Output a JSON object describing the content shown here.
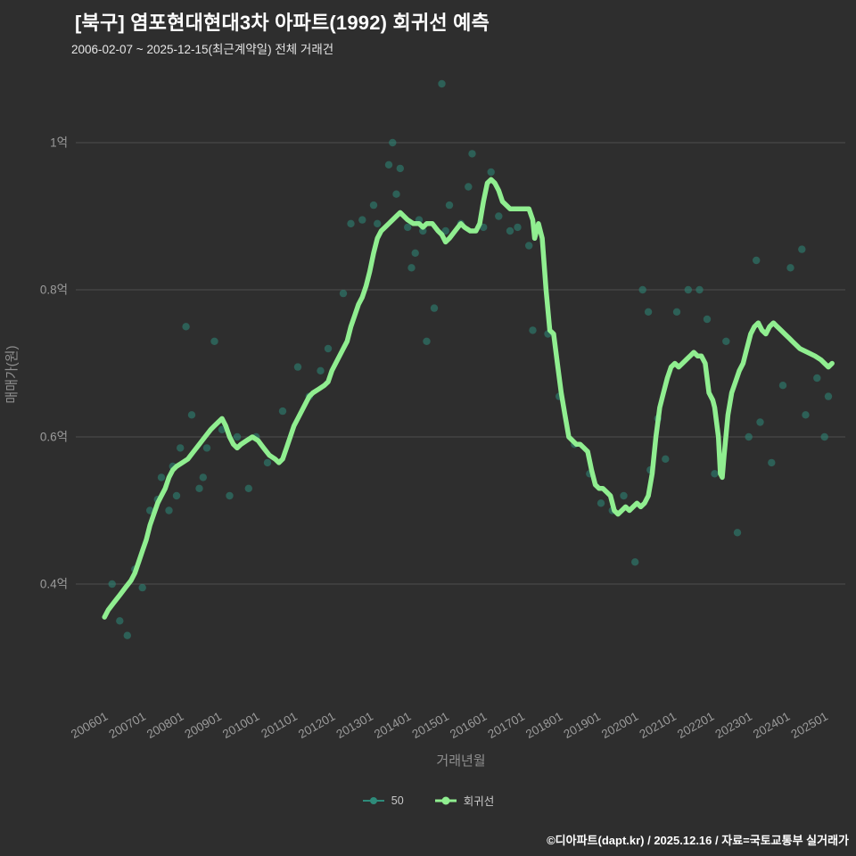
{
  "header": {
    "title": "[북구] 염포현대현대3차 아파트(1992) 회귀선 예측",
    "subtitle": "2006-02-07 ~ 2025-12-15(최근계약일) 전체 거래건"
  },
  "footer": {
    "credit": "©디아파트(dapt.kr) / 2025.12.16 / 자료=국토교통부 실거래가"
  },
  "colors": {
    "background": "#2e2e2e",
    "grid": "#4d4d4d",
    "tick_text": "#9b9b9b",
    "axis_title": "#8f8f8f",
    "scatter": "#2e8b7a",
    "line": "#90ee90",
    "title_text": "#ffffff"
  },
  "legend": {
    "items": [
      {
        "label": "50",
        "type": "scatter"
      },
      {
        "label": "회귀선",
        "type": "line"
      }
    ]
  },
  "chart_data": {
    "type": "scatter",
    "title": "[북구] 염포현대현대3차 아파트(1992) 회귀선 예측",
    "subtitle": "2006-02-07 ~ 2025-12-15(최근계약일) 전체 거래건",
    "xlabel": "거래년월",
    "ylabel": "매매가(원)",
    "x_unit": "year-month",
    "y_unit": "억원",
    "xlim": [
      2005.7,
      2026.1
    ],
    "ylim": [
      0.3,
      1.12
    ],
    "grid": "horizontal-only",
    "legend_position": "bottom-center",
    "y_ticks": [
      {
        "label": "0.4억",
        "value": 0.4
      },
      {
        "label": "0.6억",
        "value": 0.6
      },
      {
        "label": "0.8억",
        "value": 0.8
      },
      {
        "label": "1억",
        "value": 1.0
      }
    ],
    "x_ticks": [
      {
        "label": "200601",
        "value": 2006
      },
      {
        "label": "200701",
        "value": 2007
      },
      {
        "label": "200801",
        "value": 2008
      },
      {
        "label": "200901",
        "value": 2009
      },
      {
        "label": "201001",
        "value": 2010
      },
      {
        "label": "201101",
        "value": 2011
      },
      {
        "label": "201201",
        "value": 2012
      },
      {
        "label": "201301",
        "value": 2013
      },
      {
        "label": "201401",
        "value": 2014
      },
      {
        "label": "201501",
        "value": 2015
      },
      {
        "label": "201601",
        "value": 2016
      },
      {
        "label": "201701",
        "value": 2017
      },
      {
        "label": "201801",
        "value": 2018
      },
      {
        "label": "201901",
        "value": 2019
      },
      {
        "label": "202001",
        "value": 2020
      },
      {
        "label": "202101",
        "value": 2021
      },
      {
        "label": "202201",
        "value": 2022
      },
      {
        "label": "202301",
        "value": 2023
      },
      {
        "label": "202401",
        "value": 2024
      },
      {
        "label": "202501",
        "value": 2025
      }
    ],
    "series": [
      {
        "name": "50",
        "type": "scatter",
        "points": [
          [
            2006.3,
            0.4
          ],
          [
            2006.5,
            0.35
          ],
          [
            2006.7,
            0.33
          ],
          [
            2006.9,
            0.42
          ],
          [
            2007.1,
            0.395
          ],
          [
            2007.3,
            0.5
          ],
          [
            2007.5,
            0.515
          ],
          [
            2007.6,
            0.545
          ],
          [
            2007.8,
            0.5
          ],
          [
            2007.9,
            0.56
          ],
          [
            2008.0,
            0.52
          ],
          [
            2008.1,
            0.585
          ],
          [
            2008.25,
            0.75
          ],
          [
            2008.4,
            0.63
          ],
          [
            2008.6,
            0.53
          ],
          [
            2008.7,
            0.545
          ],
          [
            2008.8,
            0.585
          ],
          [
            2009.0,
            0.73
          ],
          [
            2009.2,
            0.61
          ],
          [
            2009.4,
            0.52
          ],
          [
            2009.6,
            0.6
          ],
          [
            2009.9,
            0.53
          ],
          [
            2010.1,
            0.6
          ],
          [
            2010.4,
            0.565
          ],
          [
            2010.8,
            0.635
          ],
          [
            2011.2,
            0.695
          ],
          [
            2011.5,
            0.655
          ],
          [
            2011.8,
            0.69
          ],
          [
            2012.0,
            0.72
          ],
          [
            2012.4,
            0.795
          ],
          [
            2012.6,
            0.89
          ],
          [
            2012.9,
            0.895
          ],
          [
            2013.2,
            0.915
          ],
          [
            2013.3,
            0.89
          ],
          [
            2013.6,
            0.97
          ],
          [
            2013.7,
            1.0
          ],
          [
            2013.8,
            0.93
          ],
          [
            2013.9,
            0.965
          ],
          [
            2014.1,
            0.885
          ],
          [
            2014.2,
            0.83
          ],
          [
            2014.3,
            0.85
          ],
          [
            2014.4,
            0.895
          ],
          [
            2014.5,
            0.88
          ],
          [
            2014.6,
            0.73
          ],
          [
            2014.8,
            0.775
          ],
          [
            2015.0,
            1.08
          ],
          [
            2015.1,
            0.88
          ],
          [
            2015.2,
            0.915
          ],
          [
            2015.5,
            0.89
          ],
          [
            2015.7,
            0.94
          ],
          [
            2015.8,
            0.985
          ],
          [
            2016.1,
            0.885
          ],
          [
            2016.3,
            0.96
          ],
          [
            2016.5,
            0.9
          ],
          [
            2016.8,
            0.88
          ],
          [
            2017.0,
            0.885
          ],
          [
            2017.3,
            0.86
          ],
          [
            2017.4,
            0.745
          ],
          [
            2017.8,
            0.74
          ],
          [
            2018.1,
            0.655
          ],
          [
            2018.5,
            0.59
          ],
          [
            2018.9,
            0.55
          ],
          [
            2019.2,
            0.51
          ],
          [
            2019.5,
            0.5
          ],
          [
            2019.8,
            0.52
          ],
          [
            2020.1,
            0.43
          ],
          [
            2020.3,
            0.8
          ],
          [
            2020.45,
            0.77
          ],
          [
            2020.5,
            0.555
          ],
          [
            2020.7,
            0.625
          ],
          [
            2020.9,
            0.57
          ],
          [
            2021.2,
            0.77
          ],
          [
            2021.5,
            0.8
          ],
          [
            2021.8,
            0.8
          ],
          [
            2022.0,
            0.76
          ],
          [
            2022.2,
            0.55
          ],
          [
            2022.5,
            0.73
          ],
          [
            2022.8,
            0.47
          ],
          [
            2023.1,
            0.6
          ],
          [
            2023.3,
            0.84
          ],
          [
            2023.4,
            0.62
          ],
          [
            2023.7,
            0.565
          ],
          [
            2024.0,
            0.67
          ],
          [
            2024.2,
            0.83
          ],
          [
            2024.5,
            0.855
          ],
          [
            2024.6,
            0.63
          ],
          [
            2024.9,
            0.68
          ],
          [
            2025.1,
            0.6
          ],
          [
            2025.2,
            0.655
          ]
        ]
      },
      {
        "name": "회귀선",
        "type": "line",
        "points": [
          [
            2006.1,
            0.355
          ],
          [
            2006.2,
            0.365
          ],
          [
            2006.35,
            0.375
          ],
          [
            2006.5,
            0.385
          ],
          [
            2006.65,
            0.395
          ],
          [
            2006.8,
            0.405
          ],
          [
            2006.9,
            0.415
          ],
          [
            2007.0,
            0.43
          ],
          [
            2007.1,
            0.445
          ],
          [
            2007.2,
            0.46
          ],
          [
            2007.3,
            0.48
          ],
          [
            2007.4,
            0.495
          ],
          [
            2007.5,
            0.51
          ],
          [
            2007.6,
            0.52
          ],
          [
            2007.7,
            0.53
          ],
          [
            2007.8,
            0.545
          ],
          [
            2007.9,
            0.555
          ],
          [
            2008.0,
            0.56
          ],
          [
            2008.15,
            0.565
          ],
          [
            2008.3,
            0.57
          ],
          [
            2008.45,
            0.58
          ],
          [
            2008.6,
            0.59
          ],
          [
            2008.75,
            0.6
          ],
          [
            2008.9,
            0.61
          ],
          [
            2009.0,
            0.615
          ],
          [
            2009.1,
            0.62
          ],
          [
            2009.2,
            0.625
          ],
          [
            2009.3,
            0.615
          ],
          [
            2009.4,
            0.6
          ],
          [
            2009.5,
            0.59
          ],
          [
            2009.6,
            0.585
          ],
          [
            2009.7,
            0.59
          ],
          [
            2009.85,
            0.595
          ],
          [
            2010.0,
            0.6
          ],
          [
            2010.15,
            0.595
          ],
          [
            2010.3,
            0.585
          ],
          [
            2010.45,
            0.575
          ],
          [
            2010.6,
            0.57
          ],
          [
            2010.7,
            0.565
          ],
          [
            2010.8,
            0.57
          ],
          [
            2010.9,
            0.585
          ],
          [
            2011.0,
            0.6
          ],
          [
            2011.1,
            0.615
          ],
          [
            2011.2,
            0.625
          ],
          [
            2011.35,
            0.64
          ],
          [
            2011.5,
            0.655
          ],
          [
            2011.6,
            0.66
          ],
          [
            2011.75,
            0.665
          ],
          [
            2011.9,
            0.67
          ],
          [
            2012.0,
            0.675
          ],
          [
            2012.1,
            0.69
          ],
          [
            2012.25,
            0.705
          ],
          [
            2012.4,
            0.72
          ],
          [
            2012.5,
            0.73
          ],
          [
            2012.6,
            0.75
          ],
          [
            2012.7,
            0.765
          ],
          [
            2012.8,
            0.78
          ],
          [
            2012.9,
            0.79
          ],
          [
            2013.0,
            0.805
          ],
          [
            2013.1,
            0.825
          ],
          [
            2013.2,
            0.85
          ],
          [
            2013.3,
            0.87
          ],
          [
            2013.4,
            0.88
          ],
          [
            2013.5,
            0.885
          ],
          [
            2013.6,
            0.89
          ],
          [
            2013.7,
            0.895
          ],
          [
            2013.8,
            0.9
          ],
          [
            2013.9,
            0.905
          ],
          [
            2014.0,
            0.9
          ],
          [
            2014.1,
            0.895
          ],
          [
            2014.25,
            0.89
          ],
          [
            2014.4,
            0.89
          ],
          [
            2014.5,
            0.885
          ],
          [
            2014.6,
            0.89
          ],
          [
            2014.75,
            0.89
          ],
          [
            2014.9,
            0.88
          ],
          [
            2015.0,
            0.875
          ],
          [
            2015.1,
            0.865
          ],
          [
            2015.2,
            0.87
          ],
          [
            2015.35,
            0.88
          ],
          [
            2015.5,
            0.89
          ],
          [
            2015.6,
            0.885
          ],
          [
            2015.75,
            0.88
          ],
          [
            2015.9,
            0.88
          ],
          [
            2016.0,
            0.89
          ],
          [
            2016.1,
            0.92
          ],
          [
            2016.2,
            0.945
          ],
          [
            2016.3,
            0.95
          ],
          [
            2016.4,
            0.945
          ],
          [
            2016.5,
            0.935
          ],
          [
            2016.6,
            0.92
          ],
          [
            2016.7,
            0.915
          ],
          [
            2016.8,
            0.91
          ],
          [
            2017.0,
            0.91
          ],
          [
            2017.2,
            0.91
          ],
          [
            2017.3,
            0.91
          ],
          [
            2017.4,
            0.895
          ],
          [
            2017.45,
            0.87
          ],
          [
            2017.55,
            0.89
          ],
          [
            2017.65,
            0.87
          ],
          [
            2017.75,
            0.8
          ],
          [
            2017.85,
            0.745
          ],
          [
            2017.95,
            0.74
          ],
          [
            2018.05,
            0.7
          ],
          [
            2018.15,
            0.66
          ],
          [
            2018.25,
            0.63
          ],
          [
            2018.35,
            0.6
          ],
          [
            2018.45,
            0.595
          ],
          [
            2018.55,
            0.59
          ],
          [
            2018.65,
            0.59
          ],
          [
            2018.75,
            0.585
          ],
          [
            2018.85,
            0.58
          ],
          [
            2018.95,
            0.555
          ],
          [
            2019.05,
            0.535
          ],
          [
            2019.15,
            0.53
          ],
          [
            2019.25,
            0.53
          ],
          [
            2019.35,
            0.525
          ],
          [
            2019.45,
            0.52
          ],
          [
            2019.55,
            0.5
          ],
          [
            2019.65,
            0.495
          ],
          [
            2019.75,
            0.5
          ],
          [
            2019.85,
            0.505
          ],
          [
            2019.95,
            0.5
          ],
          [
            2020.05,
            0.505
          ],
          [
            2020.15,
            0.51
          ],
          [
            2020.25,
            0.505
          ],
          [
            2020.35,
            0.51
          ],
          [
            2020.45,
            0.52
          ],
          [
            2020.55,
            0.55
          ],
          [
            2020.65,
            0.6
          ],
          [
            2020.75,
            0.64
          ],
          [
            2020.85,
            0.66
          ],
          [
            2020.95,
            0.68
          ],
          [
            2021.05,
            0.695
          ],
          [
            2021.15,
            0.7
          ],
          [
            2021.25,
            0.695
          ],
          [
            2021.35,
            0.7
          ],
          [
            2021.45,
            0.705
          ],
          [
            2021.55,
            0.71
          ],
          [
            2021.65,
            0.715
          ],
          [
            2021.75,
            0.71
          ],
          [
            2021.85,
            0.71
          ],
          [
            2021.95,
            0.7
          ],
          [
            2022.05,
            0.66
          ],
          [
            2022.15,
            0.65
          ],
          [
            2022.2,
            0.64
          ],
          [
            2022.25,
            0.62
          ],
          [
            2022.3,
            0.6
          ],
          [
            2022.35,
            0.55
          ],
          [
            2022.4,
            0.545
          ],
          [
            2022.45,
            0.575
          ],
          [
            2022.55,
            0.63
          ],
          [
            2022.65,
            0.66
          ],
          [
            2022.75,
            0.675
          ],
          [
            2022.85,
            0.69
          ],
          [
            2022.95,
            0.7
          ],
          [
            2023.05,
            0.72
          ],
          [
            2023.15,
            0.74
          ],
          [
            2023.25,
            0.75
          ],
          [
            2023.35,
            0.755
          ],
          [
            2023.45,
            0.745
          ],
          [
            2023.55,
            0.74
          ],
          [
            2023.65,
            0.75
          ],
          [
            2023.75,
            0.755
          ],
          [
            2023.85,
            0.75
          ],
          [
            2023.95,
            0.745
          ],
          [
            2024.05,
            0.74
          ],
          [
            2024.15,
            0.735
          ],
          [
            2024.25,
            0.73
          ],
          [
            2024.45,
            0.72
          ],
          [
            2024.65,
            0.715
          ],
          [
            2024.85,
            0.71
          ],
          [
            2025.0,
            0.705
          ],
          [
            2025.1,
            0.7
          ],
          [
            2025.2,
            0.695
          ],
          [
            2025.3,
            0.7
          ]
        ]
      }
    ]
  }
}
